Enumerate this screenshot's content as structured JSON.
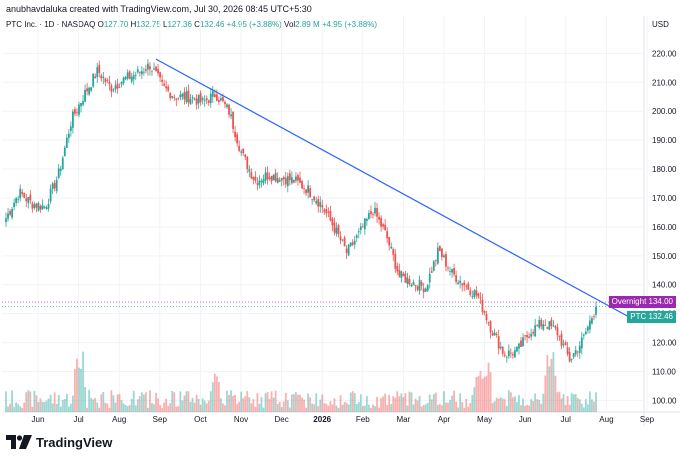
{
  "header": {
    "attribution": "anubhavdaluka created with TradingView.com, Jul 30, 2026 08:45 UTC+5:30",
    "symbol_line": "PTC Inc. · 1D · NASDAQ",
    "open_label": "O",
    "open": "127.70",
    "high_label": "H",
    "high": "132.75",
    "low_label": "L",
    "low": "127.36",
    "close_label": "C",
    "close": "132.46",
    "change": "+4.95 (+3.88%)",
    "vol_label": "Vol",
    "volume": "2.89 M",
    "vol_change": "+4.95 (+3.88%)",
    "currency": "USD"
  },
  "tags": {
    "overnight_label": "Overnight",
    "overnight_value": "134.00",
    "ticker_label": "PTC",
    "ticker_value": "132.46"
  },
  "footer": {
    "brand": "TradingView"
  },
  "colors": {
    "up": "#26a69a",
    "down": "#ef5350",
    "trendline": "#2962ff",
    "overnight": "#9c27b0",
    "ticker": "#26a69a"
  },
  "chart_data": {
    "type": "candlestick",
    "ylim": [
      96,
      226
    ],
    "y_ticks": [
      100,
      110,
      120,
      130,
      140,
      150,
      160,
      170,
      180,
      190,
      200,
      210,
      220
    ],
    "x_ticks": [
      "Jun",
      "Jul",
      "Aug",
      "Sep",
      "Oct",
      "Nov",
      "Dec",
      "2026",
      "Feb",
      "Mar",
      "Apr",
      "May",
      "Jun",
      "Jul",
      "Aug",
      "Sep"
    ],
    "trendline": {
      "from": {
        "date": "early Sep",
        "value": 218
      },
      "to": {
        "date": "late Aug",
        "value": 128.5
      }
    },
    "price_path": [
      [
        "Jun 1",
        163
      ],
      [
        "Jun 10",
        172
      ],
      [
        "Jun 25",
        168
      ],
      [
        "Jul 5",
        167
      ],
      [
        "Jul 10",
        178
      ],
      [
        "Jul 20",
        197
      ],
      [
        "Jul 28",
        206
      ],
      [
        "Aug 5",
        214
      ],
      [
        "Aug 12",
        208
      ],
      [
        "Aug 20",
        211
      ],
      [
        "Aug 28",
        213
      ],
      [
        "Sep 5",
        216
      ],
      [
        "Sep 15",
        208
      ],
      [
        "Sep 25",
        205
      ],
      [
        "Oct 5",
        205
      ],
      [
        "Oct 15",
        203
      ],
      [
        "Oct 25",
        206
      ],
      [
        "Nov 1",
        200
      ],
      [
        "Nov 5",
        185
      ],
      [
        "Nov 10",
        176
      ],
      [
        "Nov 25",
        178
      ],
      [
        "Dec 10",
        177
      ],
      [
        "Dec 25",
        176
      ],
      [
        "Jan 5",
        173
      ],
      [
        "Jan 20",
        168
      ],
      [
        "Feb 1",
        160
      ],
      [
        "Feb 15",
        151
      ],
      [
        "Mar 1",
        158
      ],
      [
        "Mar 10",
        166
      ],
      [
        "Mar 20",
        157
      ],
      [
        "Apr 1",
        143
      ],
      [
        "Apr 15",
        141
      ],
      [
        "Apr 28",
        139
      ],
      [
        "May 5",
        152
      ],
      [
        "May 15",
        144
      ],
      [
        "May 25",
        140
      ],
      [
        "Jun 1",
        136
      ],
      [
        "Jun 5",
        125
      ],
      [
        "Jun 12",
        116
      ],
      [
        "Jun 20",
        117
      ],
      [
        "Jul 1",
        124
      ],
      [
        "Jul 10",
        127
      ],
      [
        "Jul 18",
        124
      ],
      [
        "Jul 22",
        114
      ],
      [
        "Jul 26",
        121
      ],
      [
        "Jul 30",
        132.46
      ]
    ],
    "volume_scale": "relative"
  }
}
